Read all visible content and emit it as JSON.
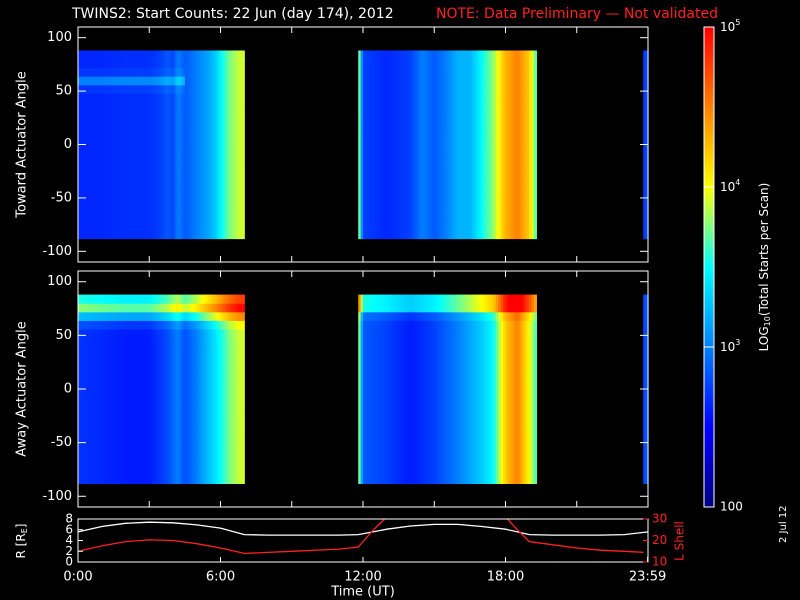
{
  "header": {
    "title": "TWINS2: Start Counts: 22 Jun (day 174), 2012",
    "note": "NOTE: Data Preliminary — Not validated",
    "date_stamp": "2 Jul 12"
  },
  "colors": {
    "background": "#000000",
    "axes": "#ffffff",
    "note": "#ff2020",
    "r_line": "#ffffff",
    "lshell_line": "#ff2020"
  },
  "chart_data": [
    {
      "type": "heatmap",
      "name": "toward-panel",
      "ylabel": "Toward Actuator Angle",
      "xlim": [
        0,
        24
      ],
      "ylim": [
        -110,
        110
      ],
      "yticks": [
        -100,
        -50,
        0,
        50,
        100
      ],
      "angle_range": [
        -88,
        88
      ],
      "data_intervals": [
        [
          0,
          7.0
        ],
        [
          11.8,
          19.3
        ],
        [
          23.8,
          24.0
        ]
      ],
      "time_profile": [
        {
          "t": 0.0,
          "v": 2.65
        },
        {
          "t": 1.0,
          "v": 2.65
        },
        {
          "t": 2.0,
          "v": 2.68
        },
        {
          "t": 3.0,
          "v": 2.68
        },
        {
          "t": 3.5,
          "v": 2.75
        },
        {
          "t": 3.8,
          "v": 2.85
        },
        {
          "t": 4.0,
          "v": 2.75
        },
        {
          "t": 4.2,
          "v": 3.0
        },
        {
          "t": 4.5,
          "v": 2.85
        },
        {
          "t": 5.0,
          "v": 3.0
        },
        {
          "t": 5.5,
          "v": 3.15
        },
        {
          "t": 5.8,
          "v": 3.3
        },
        {
          "t": 6.1,
          "v": 3.55
        },
        {
          "t": 6.4,
          "v": 3.75
        },
        {
          "t": 6.8,
          "v": 3.9
        },
        {
          "t": 11.8,
          "v": 4.0
        },
        {
          "t": 12.0,
          "v": 2.75
        },
        {
          "t": 13.0,
          "v": 2.65
        },
        {
          "t": 14.0,
          "v": 2.75
        },
        {
          "t": 14.5,
          "v": 3.0
        },
        {
          "t": 15.0,
          "v": 2.85
        },
        {
          "t": 15.5,
          "v": 3.0
        },
        {
          "t": 16.0,
          "v": 3.2
        },
        {
          "t": 16.5,
          "v": 3.2
        },
        {
          "t": 17.0,
          "v": 3.5
        },
        {
          "t": 17.5,
          "v": 3.8
        },
        {
          "t": 18.0,
          "v": 4.3
        },
        {
          "t": 18.5,
          "v": 4.5
        },
        {
          "t": 19.0,
          "v": 4.2
        },
        {
          "t": 19.3,
          "v": 3.6
        },
        {
          "t": 23.8,
          "v": 2.75
        },
        {
          "t": 24.0,
          "v": 2.75
        }
      ],
      "angle_features": [
        {
          "center": 60,
          "width": 6,
          "boost": 0.35,
          "until_t": 4.5
        }
      ]
    },
    {
      "type": "heatmap",
      "name": "away-panel",
      "ylabel": "Away Actuator Angle",
      "xlim": [
        0,
        24
      ],
      "ylim": [
        -110,
        110
      ],
      "yticks": [
        -100,
        -50,
        0,
        50,
        100
      ],
      "angle_range": [
        -88,
        88
      ],
      "data_intervals": [
        [
          0,
          7.0
        ],
        [
          11.8,
          19.3
        ],
        [
          23.8,
          24.0
        ]
      ],
      "time_profile": [
        {
          "t": 0.0,
          "v": 2.7
        },
        {
          "t": 2.0,
          "v": 2.6
        },
        {
          "t": 3.0,
          "v": 2.6
        },
        {
          "t": 3.8,
          "v": 2.8
        },
        {
          "t": 4.2,
          "v": 3.0
        },
        {
          "t": 4.5,
          "v": 2.8
        },
        {
          "t": 5.0,
          "v": 3.0
        },
        {
          "t": 5.8,
          "v": 3.4
        },
        {
          "t": 6.4,
          "v": 3.75
        },
        {
          "t": 6.8,
          "v": 3.9
        },
        {
          "t": 11.8,
          "v": 4.0
        },
        {
          "t": 12.0,
          "v": 2.85
        },
        {
          "t": 13.0,
          "v": 2.75
        },
        {
          "t": 14.0,
          "v": 2.6
        },
        {
          "t": 15.0,
          "v": 2.75
        },
        {
          "t": 16.0,
          "v": 3.0
        },
        {
          "t": 17.0,
          "v": 3.3
        },
        {
          "t": 17.5,
          "v": 3.5
        },
        {
          "t": 18.0,
          "v": 4.2
        },
        {
          "t": 18.5,
          "v": 4.5
        },
        {
          "t": 19.0,
          "v": 4.0
        },
        {
          "t": 19.3,
          "v": 3.6
        },
        {
          "t": 23.8,
          "v": 2.8
        },
        {
          "t": 24.0,
          "v": 2.8
        }
      ],
      "angle_features": [
        {
          "center": 78,
          "width": 12,
          "boost": 1.1,
          "until_t": 7.0
        },
        {
          "center": 80,
          "width": 8,
          "boost": 0.9,
          "from_t": 11.8,
          "until_t": 19.3
        }
      ]
    },
    {
      "type": "line",
      "name": "orbit-panel",
      "xlabel": "Time (UT)",
      "xlim": [
        0,
        24
      ],
      "xticks": [
        {
          "v": 0,
          "label": "0:00"
        },
        {
          "v": 6,
          "label": "6:00"
        },
        {
          "v": 12,
          "label": "12:00"
        },
        {
          "v": 18,
          "label": "18:00"
        },
        {
          "v": 23.983,
          "label": "23:59"
        }
      ],
      "left_axis": {
        "label": "R (RE)",
        "label_main": "R [R",
        "label_sub": "E",
        "label_end": "]",
        "ylim": [
          0,
          8
        ],
        "yticks": [
          0,
          2,
          4,
          6,
          8
        ]
      },
      "right_axis": {
        "label": "L Shell",
        "ylim": [
          10,
          30
        ],
        "yticks": [
          10,
          20,
          30
        ]
      },
      "series": [
        {
          "name": "R",
          "axis": "left",
          "x": [
            0,
            1,
            2,
            3,
            4,
            5,
            6,
            7,
            8,
            9,
            10,
            11,
            11.8,
            13,
            14,
            15,
            16,
            17,
            18,
            19,
            20,
            21,
            22,
            23,
            24
          ],
          "y": [
            5.6,
            6.6,
            7.2,
            7.4,
            7.3,
            6.9,
            6.3,
            5.1,
            5.0,
            5.0,
            5.0,
            5.0,
            5.1,
            6.1,
            6.7,
            7.0,
            7.0,
            6.6,
            6.1,
            5.1,
            5.0,
            5.0,
            5.0,
            5.1,
            5.6
          ]
        },
        {
          "name": "L Shell",
          "axis": "right",
          "x": [
            0,
            1,
            2,
            3,
            4,
            5,
            6,
            7,
            9,
            11,
            11.8,
            12.4,
            13,
            18,
            18.5,
            19,
            20,
            21,
            22,
            23,
            23.8
          ],
          "y": [
            15.0,
            17.5,
            19.5,
            20.3,
            20.0,
            18.5,
            16.5,
            14.0,
            15.0,
            16.0,
            17.0,
            24.5,
            31.0,
            31.0,
            25.0,
            19.5,
            18.0,
            16.5,
            15.5,
            15.0,
            14.5
          ]
        }
      ]
    },
    {
      "type": "colorbar",
      "name": "colorbar",
      "label": "LOG10(Total Starts per Scan)",
      "label_pre": "LOG",
      "label_sub": "10",
      "label_post": "(Total Starts per Scan)",
      "scale": "log",
      "range": [
        100,
        100000
      ],
      "ticks": [
        {
          "value": 100,
          "label": "100"
        },
        {
          "value": 1000,
          "base": "10",
          "exp": "3"
        },
        {
          "value": 10000,
          "base": "10",
          "exp": "4"
        },
        {
          "value": 100000,
          "base": "10",
          "exp": "5"
        }
      ],
      "colors": [
        "#000080",
        "#0000ff",
        "#0080ff",
        "#00ffff",
        "#ffff00",
        "#ff8000",
        "#ff0000"
      ]
    }
  ]
}
